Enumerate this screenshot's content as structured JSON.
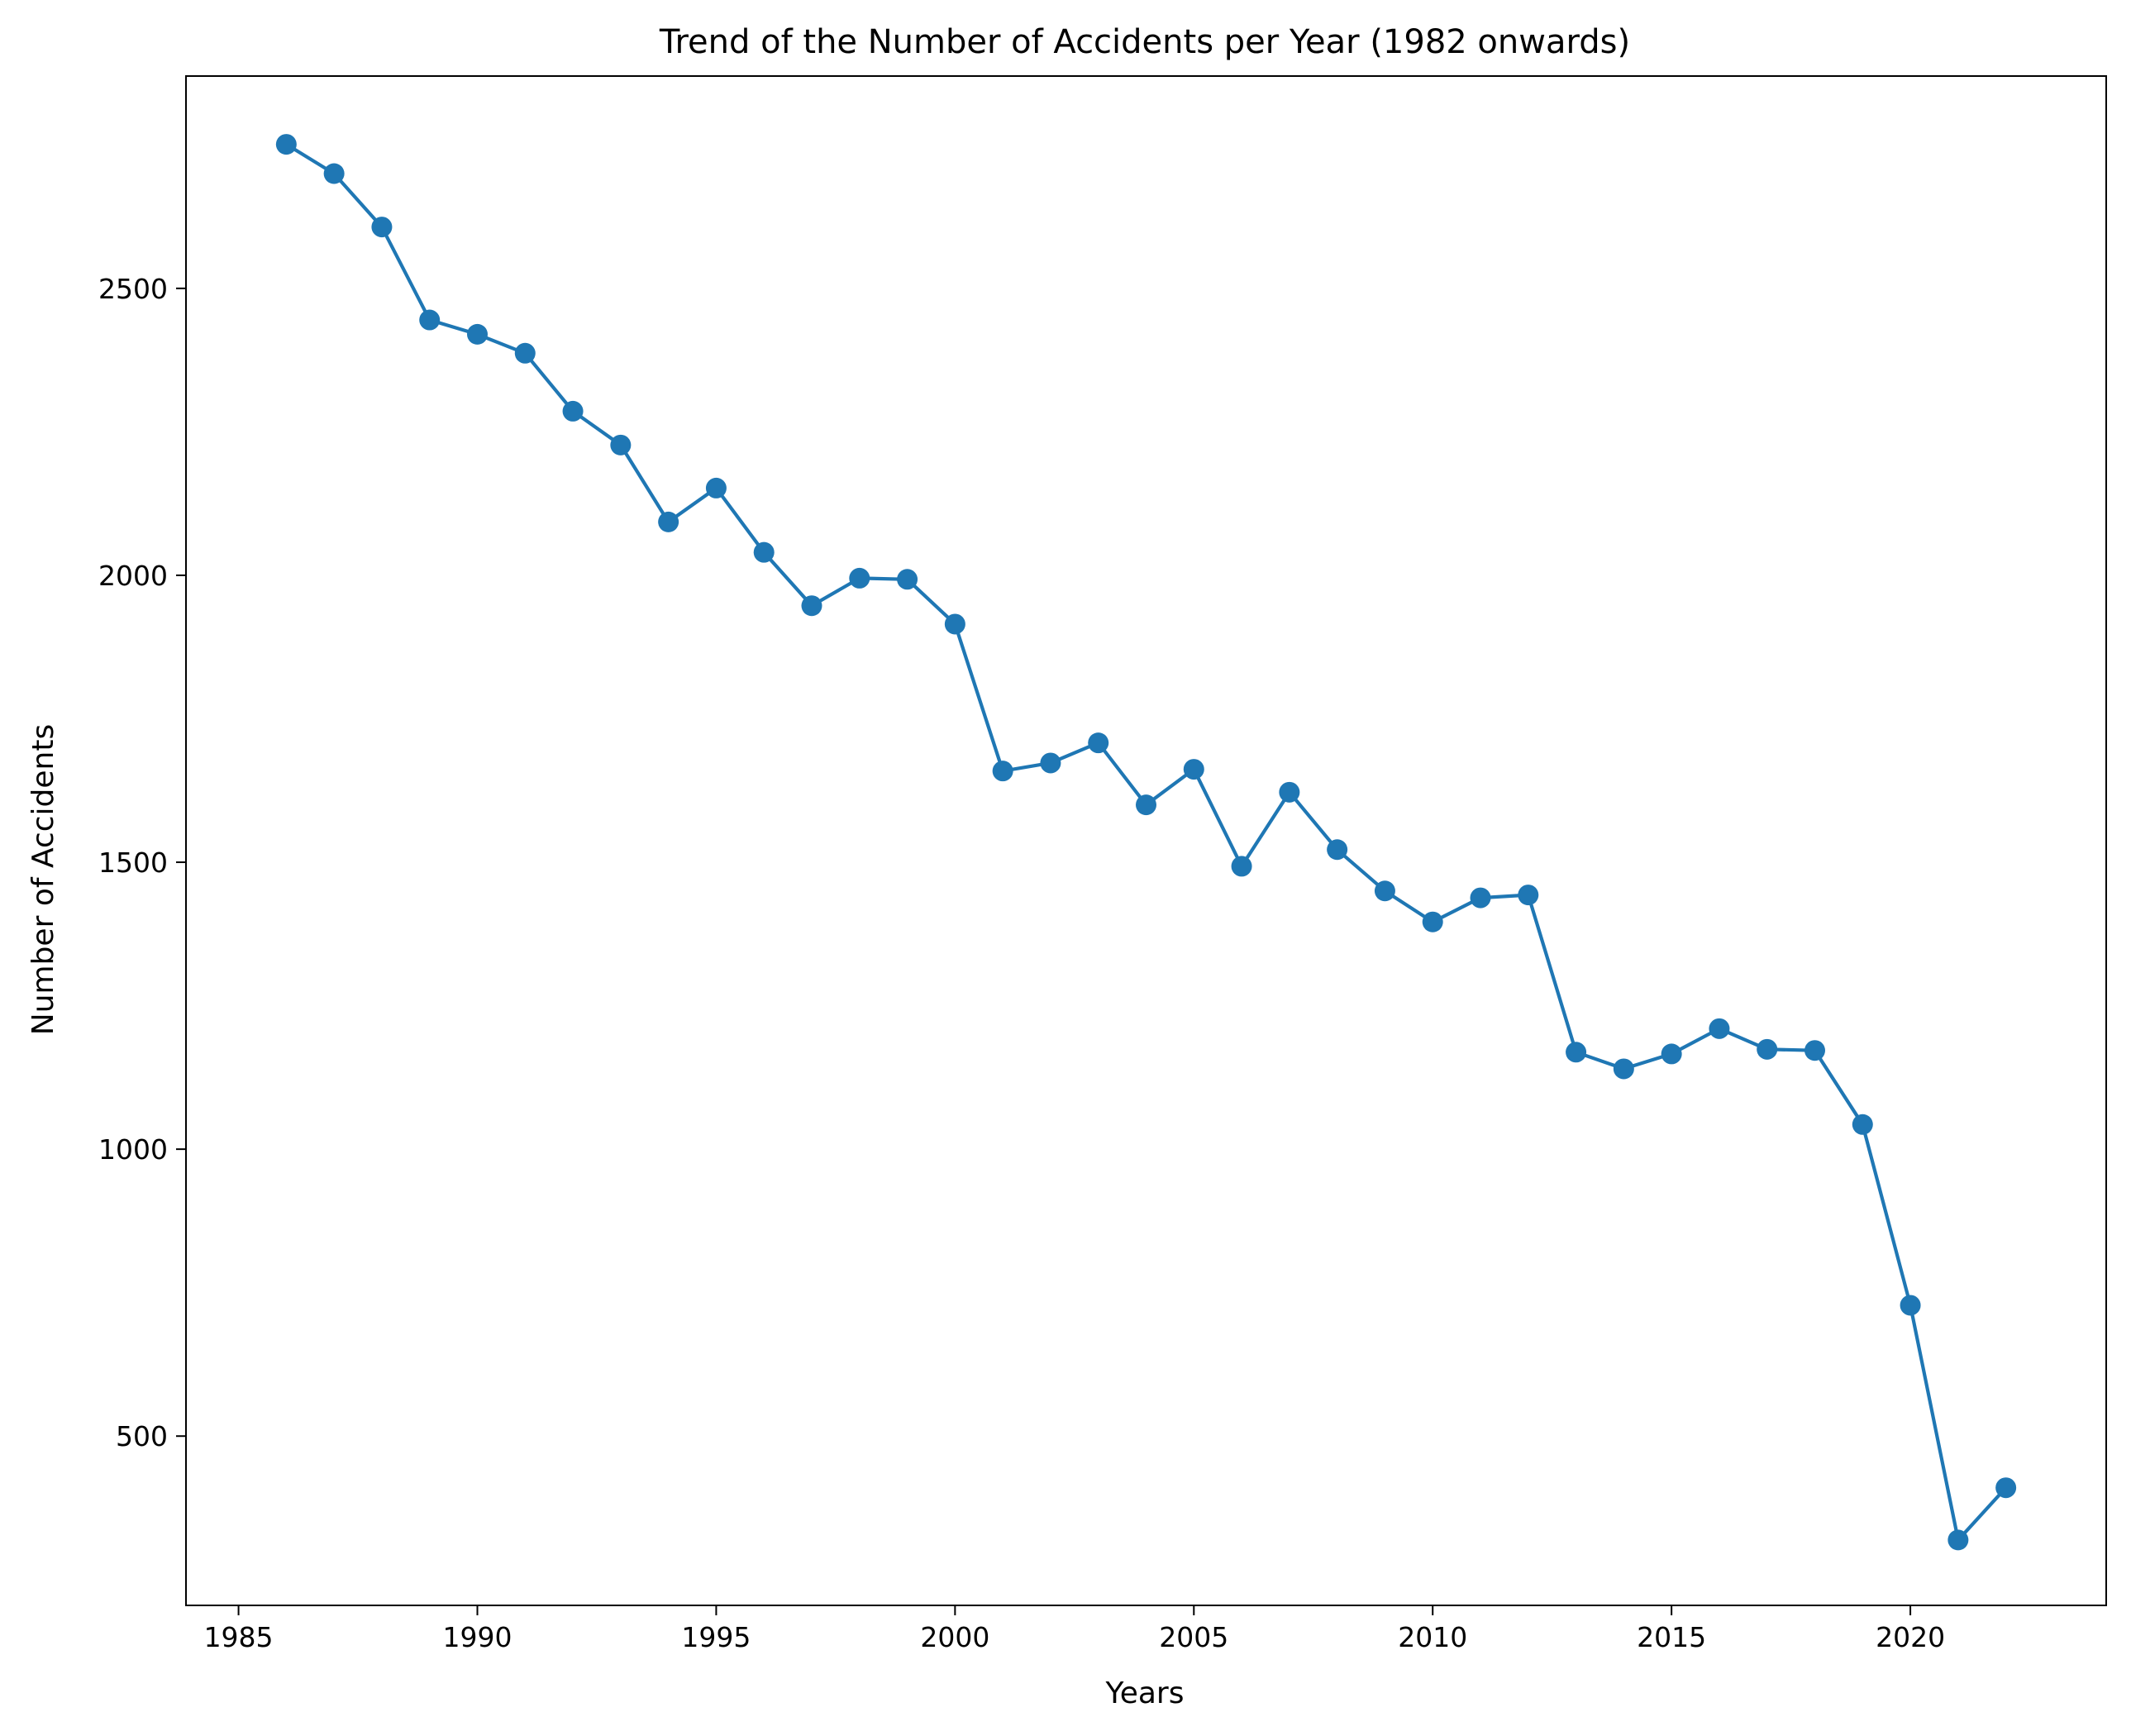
{
  "chart_data": {
    "type": "line",
    "title": "Trend of the Number of Accidents per Year (1982 onwards)",
    "xlabel": "Years",
    "ylabel": "Number of Accidents",
    "xlim": [
      1983.9,
      2024.1
    ],
    "ylim": [
      205,
      2870
    ],
    "xticks": [
      1985,
      1990,
      1995,
      2000,
      2005,
      2010,
      2015,
      2020
    ],
    "yticks": [
      500,
      1000,
      1500,
      2000,
      2500
    ],
    "grid": false,
    "legend": "none",
    "series": [
      {
        "color": "#1f77b4",
        "marker": "circle",
        "x": [
          1986,
          1987,
          1988,
          1989,
          1990,
          1991,
          1992,
          1993,
          1994,
          1995,
          1996,
          1997,
          1998,
          1999,
          2000,
          2001,
          2002,
          2003,
          2004,
          2005,
          2006,
          2007,
          2008,
          2009,
          2010,
          2011,
          2012,
          2013,
          2014,
          2015,
          2016,
          2017,
          2018,
          2019,
          2020,
          2021,
          2022
        ],
        "y": [
          2751,
          2700,
          2607,
          2445,
          2420,
          2387,
          2286,
          2227,
          2093,
          2152,
          2040,
          1947,
          1995,
          1993,
          1915,
          1659,
          1673,
          1708,
          1600,
          1662,
          1493,
          1622,
          1522,
          1450,
          1396,
          1438,
          1443,
          1169,
          1140,
          1166,
          1210,
          1174,
          1172,
          1043,
          728,
          319,
          410
        ]
      }
    ]
  }
}
